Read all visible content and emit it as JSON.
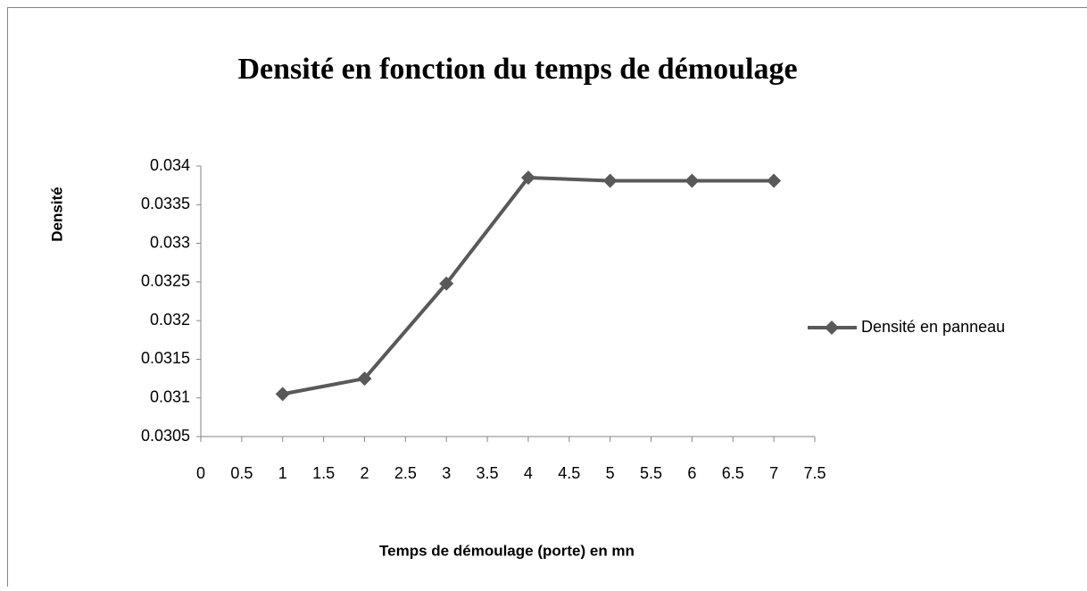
{
  "chart_data": {
    "type": "line",
    "title": "Densité en fonction du temps de démoulage",
    "xlabel": "Temps de démoulage (porte) en mn",
    "ylabel": "Densité",
    "x": [
      1,
      2,
      3,
      4,
      5,
      6,
      7
    ],
    "series": [
      {
        "name": "Densité en panneau",
        "color": "#595959",
        "values": [
          0.03105,
          0.03125,
          0.03248,
          0.03385,
          0.03381,
          0.03381,
          0.03381
        ]
      }
    ],
    "xlim": [
      0,
      7.5
    ],
    "xticks": [
      0,
      0.5,
      1,
      1.5,
      2,
      2.5,
      3,
      3.5,
      4,
      4.5,
      5,
      5.5,
      6,
      6.5,
      7,
      7.5
    ],
    "ylim": [
      0.0305,
      0.034
    ],
    "yticks": [
      0.0305,
      0.031,
      0.0315,
      0.032,
      0.0325,
      0.033,
      0.0335,
      0.034
    ],
    "grid": false,
    "legend": "right"
  }
}
